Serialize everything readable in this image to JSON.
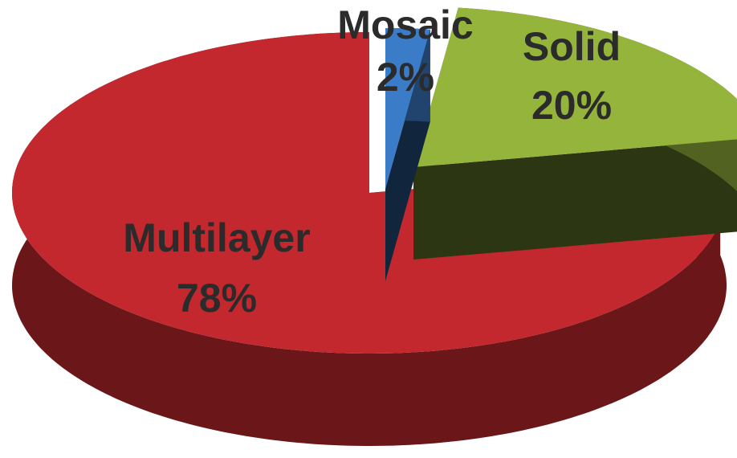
{
  "chart_data": {
    "type": "pie3d",
    "categories": [
      "Mosaic",
      "Solid",
      "Multilayer"
    ],
    "values": [
      2,
      20,
      78
    ],
    "value_labels": [
      "2%",
      "20%",
      "78%"
    ],
    "colors": [
      "#3a7cc8",
      "#95b43c",
      "#c2282d"
    ]
  }
}
